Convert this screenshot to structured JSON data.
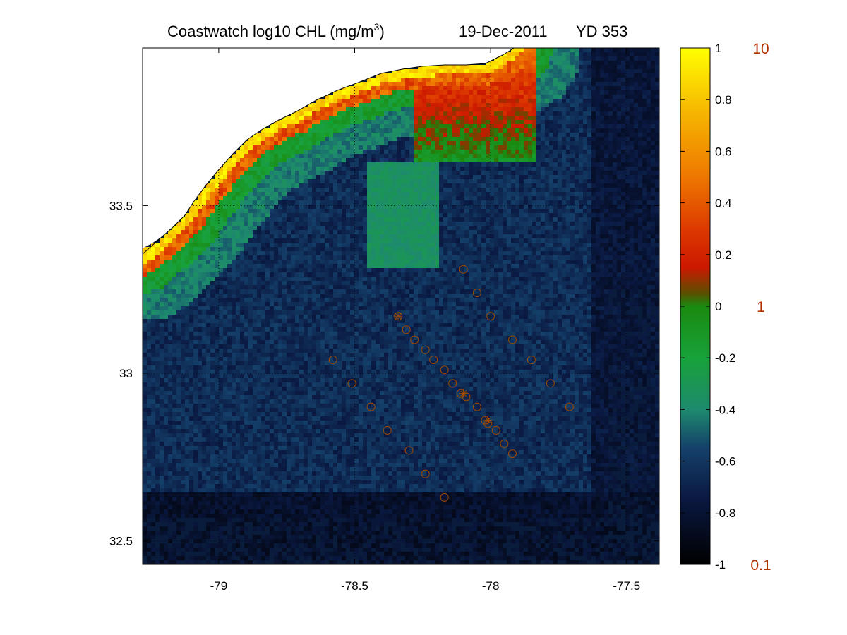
{
  "chart_data": {
    "type": "heatmap",
    "title": {
      "left_prefix": "Coastwatch  log10  CHL (mg/m",
      "left_sup": "3",
      "left_suffix": ")",
      "date": "19-Dec-2011",
      "yearday": "YD 353"
    },
    "xlabel": "",
    "ylabel": "",
    "xlim": [
      -79.28,
      -77.38
    ],
    "ylim": [
      32.43,
      33.97
    ],
    "x_ticks": [
      {
        "value": -79.0,
        "label": "-79"
      },
      {
        "value": -78.5,
        "label": "-78.5"
      },
      {
        "value": -78.0,
        "label": "-78"
      },
      {
        "value": -77.5,
        "label": "-77.5"
      }
    ],
    "y_ticks": [
      {
        "value": 32.5,
        "label": "32.5"
      },
      {
        "value": 33.0,
        "label": "33"
      },
      {
        "value": 33.5,
        "label": "33.5"
      }
    ],
    "grid": "dotted",
    "colorbar": {
      "range": [
        -1,
        1
      ],
      "ticks": [
        {
          "value": 1.0,
          "label": "1"
        },
        {
          "value": 0.8,
          "label": "0.8"
        },
        {
          "value": 0.6,
          "label": "0.6"
        },
        {
          "value": 0.4,
          "label": "0.4"
        },
        {
          "value": 0.2,
          "label": "0.2"
        },
        {
          "value": 0.0,
          "label": "0"
        },
        {
          "value": -0.2,
          "label": "-0.2"
        },
        {
          "value": -0.4,
          "label": "-0.4"
        },
        {
          "value": -0.6,
          "label": "-0.6"
        },
        {
          "value": -0.8,
          "label": "-0.8"
        },
        {
          "value": -1.0,
          "label": "-1"
        }
      ],
      "secondary_ticks": [
        {
          "value": 1.0,
          "label": "10"
        },
        {
          "value": 0.0,
          "label": "1"
        },
        {
          "value": -1.0,
          "label": "0.1"
        }
      ],
      "colormap": [
        {
          "v": -1.0,
          "color": "#000000"
        },
        {
          "v": -0.75,
          "color": "#0a1840"
        },
        {
          "v": -0.55,
          "color": "#14406a"
        },
        {
          "v": -0.4,
          "color": "#1e8a6e"
        },
        {
          "v": -0.2,
          "color": "#18a23a"
        },
        {
          "v": 0.0,
          "color": "#1a8a10"
        },
        {
          "v": 0.05,
          "color": "#5a5000"
        },
        {
          "v": 0.15,
          "color": "#cc1800"
        },
        {
          "v": 0.3,
          "color": "#dd3a00"
        },
        {
          "v": 0.5,
          "color": "#ee7700"
        },
        {
          "v": 0.75,
          "color": "#f6b600"
        },
        {
          "v": 1.0,
          "color": "#ffff00"
        }
      ]
    },
    "stations": [
      {
        "lon": -78.1,
        "lat": 33.31
      },
      {
        "lon": -78.05,
        "lat": 33.24
      },
      {
        "lon": -78.0,
        "lat": 33.17
      },
      {
        "lon": -77.92,
        "lat": 33.1
      },
      {
        "lon": -77.85,
        "lat": 33.04
      },
      {
        "lon": -77.78,
        "lat": 32.97
      },
      {
        "lon": -77.71,
        "lat": 32.9
      },
      {
        "lon": -78.34,
        "lat": 33.17
      },
      {
        "lon": -78.31,
        "lat": 33.13
      },
      {
        "lon": -78.28,
        "lat": 33.1
      },
      {
        "lon": -78.24,
        "lat": 33.07
      },
      {
        "lon": -78.21,
        "lat": 33.04
      },
      {
        "lon": -78.17,
        "lat": 33.01
      },
      {
        "lon": -78.14,
        "lat": 32.97
      },
      {
        "lon": -78.11,
        "lat": 32.94
      },
      {
        "lon": -78.09,
        "lat": 32.93
      },
      {
        "lon": -78.05,
        "lat": 32.9
      },
      {
        "lon": -78.02,
        "lat": 32.86
      },
      {
        "lon": -78.01,
        "lat": 32.85
      },
      {
        "lon": -77.98,
        "lat": 32.83
      },
      {
        "lon": -77.95,
        "lat": 32.79
      },
      {
        "lon": -77.92,
        "lat": 32.76
      },
      {
        "lon": -78.58,
        "lat": 33.04
      },
      {
        "lon": -78.51,
        "lat": 32.97
      },
      {
        "lon": -78.44,
        "lat": 32.9
      },
      {
        "lon": -78.38,
        "lat": 32.83
      },
      {
        "lon": -78.3,
        "lat": 32.77
      },
      {
        "lon": -78.24,
        "lat": 32.7
      },
      {
        "lon": -78.17,
        "lat": 32.63
      }
    ],
    "starred_stations": [
      {
        "lon": -78.34,
        "lat": 33.17
      },
      {
        "lon": -78.1,
        "lat": 32.94
      },
      {
        "lon": -78.01,
        "lat": 32.86
      }
    ],
    "colors": {
      "station_marker": "#a04a00",
      "secondary_tick_label": "#b03000",
      "coastline": "#000000",
      "land": "#ffffff"
    }
  }
}
